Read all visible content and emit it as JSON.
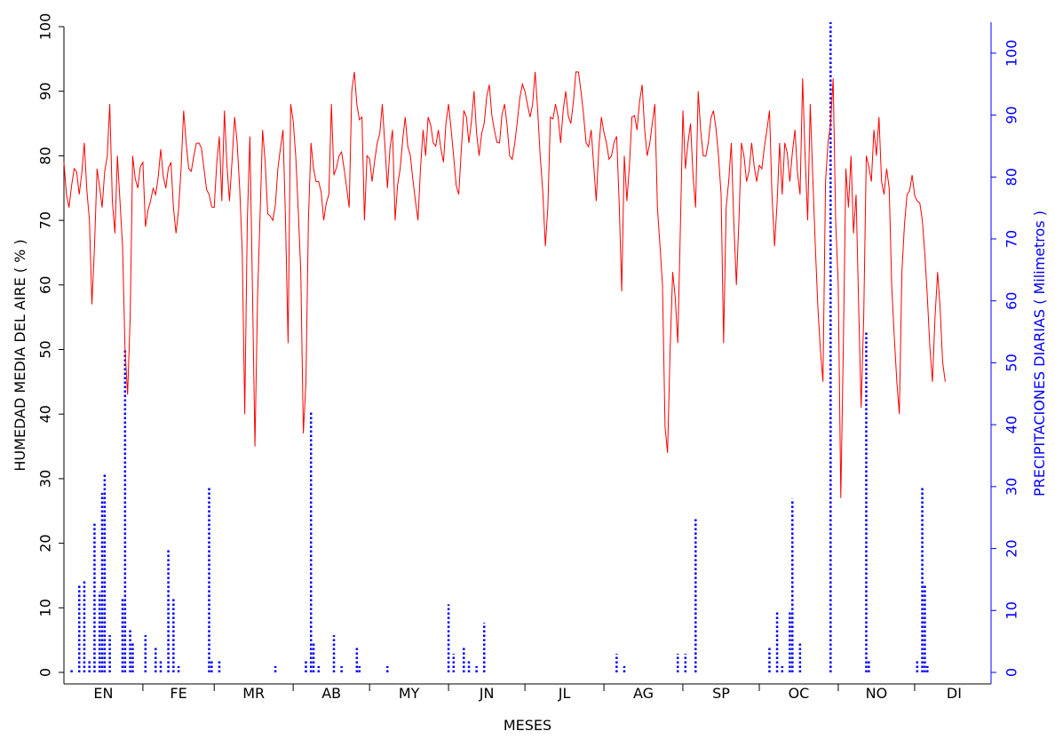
{
  "chart_data": {
    "type": "line",
    "xlabel": "MESES",
    "ylabel_left": "HUMEDAD MEDIA DEL AIRE  ( % )",
    "ylabel_right": "PRECIPITACIONES DIARIAS  ( Milimetros )",
    "categories": [
      "EN",
      "FE",
      "MR",
      "AB",
      "MY",
      "JN",
      "JL",
      "AG",
      "SP",
      "OC",
      "NO",
      "DI"
    ],
    "x_unit": "day of year",
    "xlim": [
      1,
      365
    ],
    "ylim_left": [
      0,
      100
    ],
    "ylim_right": [
      0,
      105
    ],
    "left_ticks": [
      0,
      10,
      20,
      30,
      40,
      50,
      60,
      70,
      80,
      90,
      100
    ],
    "right_ticks": [
      0,
      10,
      20,
      30,
      40,
      50,
      60,
      70,
      80,
      90,
      100
    ],
    "colors": {
      "humidity": "#ff0000",
      "precipitation": "#0000ff",
      "left_axis": "#000000",
      "right_axis": "#0000ff"
    },
    "series": [
      {
        "axis": "left",
        "style": "solid",
        "color": "#ff0000",
        "anchor_values": [
          [
            1,
            79
          ],
          [
            3,
            72
          ],
          [
            5,
            78
          ],
          [
            7,
            74
          ],
          [
            9,
            82
          ],
          [
            11,
            70
          ],
          [
            12,
            57
          ],
          [
            14,
            78
          ],
          [
            16,
            72
          ],
          [
            18,
            80
          ],
          [
            19,
            88
          ],
          [
            20,
            73
          ],
          [
            21,
            68
          ],
          [
            22,
            80
          ],
          [
            23,
            73
          ],
          [
            24,
            66
          ],
          [
            25,
            50
          ],
          [
            26,
            43
          ],
          [
            27,
            55
          ],
          [
            28,
            80
          ],
          [
            30,
            75
          ],
          [
            32,
            79
          ],
          [
            33,
            69
          ],
          [
            35,
            73
          ],
          [
            37,
            74
          ],
          [
            39,
            81
          ],
          [
            41,
            75
          ],
          [
            43,
            79
          ],
          [
            44,
            72
          ],
          [
            45,
            68
          ],
          [
            47,
            78
          ],
          [
            48,
            87
          ],
          [
            50,
            78
          ],
          [
            52,
            80
          ],
          [
            54,
            82
          ],
          [
            56,
            78
          ],
          [
            58,
            74
          ],
          [
            60,
            72
          ],
          [
            62,
            83
          ],
          [
            63,
            73
          ],
          [
            64,
            87
          ],
          [
            66,
            73
          ],
          [
            68,
            86
          ],
          [
            70,
            75
          ],
          [
            71,
            65
          ],
          [
            72,
            40
          ],
          [
            73,
            70
          ],
          [
            74,
            83
          ],
          [
            75,
            60
          ],
          [
            76,
            35
          ],
          [
            77,
            58
          ],
          [
            79,
            84
          ],
          [
            81,
            71
          ],
          [
            83,
            70
          ],
          [
            85,
            78
          ],
          [
            87,
            84
          ],
          [
            88,
            70
          ],
          [
            89,
            51
          ],
          [
            90,
            88
          ],
          [
            92,
            80
          ],
          [
            94,
            62
          ],
          [
            95,
            37
          ],
          [
            96,
            45
          ],
          [
            97,
            70
          ],
          [
            98,
            82
          ],
          [
            99,
            78
          ],
          [
            101,
            76
          ],
          [
            103,
            70
          ],
          [
            105,
            74
          ],
          [
            106,
            88
          ],
          [
            107,
            77
          ],
          [
            109,
            80
          ],
          [
            111,
            78
          ],
          [
            113,
            72
          ],
          [
            114,
            90
          ],
          [
            115,
            93
          ],
          [
            116,
            88
          ],
          [
            118,
            86
          ],
          [
            119,
            70
          ],
          [
            120,
            80
          ],
          [
            122,
            76
          ],
          [
            124,
            82
          ],
          [
            126,
            88
          ],
          [
            128,
            75
          ],
          [
            130,
            84
          ],
          [
            131,
            70
          ],
          [
            133,
            78
          ],
          [
            135,
            86
          ],
          [
            137,
            80
          ],
          [
            139,
            73
          ],
          [
            140,
            70
          ],
          [
            141,
            78
          ],
          [
            142,
            84
          ],
          [
            143,
            80
          ],
          [
            144,
            86
          ],
          [
            146,
            82
          ],
          [
            148,
            84
          ],
          [
            150,
            79
          ],
          [
            152,
            88
          ],
          [
            154,
            80
          ],
          [
            156,
            74
          ],
          [
            158,
            87
          ],
          [
            160,
            82
          ],
          [
            162,
            90
          ],
          [
            164,
            80
          ],
          [
            166,
            85
          ],
          [
            168,
            91
          ],
          [
            170,
            84
          ],
          [
            172,
            82
          ],
          [
            174,
            88
          ],
          [
            176,
            80
          ],
          [
            178,
            82
          ],
          [
            180,
            89
          ],
          [
            182,
            90
          ],
          [
            184,
            86
          ],
          [
            186,
            93
          ],
          [
            188,
            80
          ],
          [
            190,
            66
          ],
          [
            191,
            72
          ],
          [
            192,
            86
          ],
          [
            194,
            88
          ],
          [
            196,
            82
          ],
          [
            198,
            90
          ],
          [
            200,
            85
          ],
          [
            202,
            93
          ],
          [
            204,
            90
          ],
          [
            206,
            82
          ],
          [
            208,
            84
          ],
          [
            210,
            73
          ],
          [
            212,
            86
          ],
          [
            214,
            82
          ],
          [
            216,
            80
          ],
          [
            218,
            83
          ],
          [
            220,
            59
          ],
          [
            221,
            80
          ],
          [
            222,
            73
          ],
          [
            224,
            86
          ],
          [
            226,
            84
          ],
          [
            228,
            91
          ],
          [
            230,
            80
          ],
          [
            232,
            85
          ],
          [
            233,
            88
          ],
          [
            234,
            72
          ],
          [
            236,
            60
          ],
          [
            237,
            38
          ],
          [
            238,
            34
          ],
          [
            239,
            50
          ],
          [
            240,
            62
          ],
          [
            241,
            58
          ],
          [
            242,
            51
          ],
          [
            244,
            87
          ],
          [
            245,
            78
          ],
          [
            247,
            85
          ],
          [
            249,
            72
          ],
          [
            250,
            90
          ],
          [
            252,
            80
          ],
          [
            254,
            82
          ],
          [
            256,
            87
          ],
          [
            258,
            80
          ],
          [
            259,
            74
          ],
          [
            260,
            51
          ],
          [
            261,
            72
          ],
          [
            263,
            82
          ],
          [
            265,
            60
          ],
          [
            266,
            70
          ],
          [
            267,
            82
          ],
          [
            269,
            76
          ],
          [
            271,
            82
          ],
          [
            273,
            76
          ],
          [
            275,
            78
          ],
          [
            277,
            84
          ],
          [
            278,
            87
          ],
          [
            279,
            74
          ],
          [
            280,
            66
          ],
          [
            282,
            82
          ],
          [
            283,
            74
          ],
          [
            284,
            82
          ],
          [
            286,
            76
          ],
          [
            288,
            84
          ],
          [
            290,
            74
          ],
          [
            291,
            92
          ],
          [
            292,
            80
          ],
          [
            293,
            70
          ],
          [
            294,
            88
          ],
          [
            296,
            66
          ],
          [
            298,
            50
          ],
          [
            299,
            45
          ],
          [
            300,
            76
          ],
          [
            302,
            85
          ],
          [
            303,
            92
          ],
          [
            304,
            70
          ],
          [
            305,
            60
          ],
          [
            306,
            27
          ],
          [
            307,
            50
          ],
          [
            308,
            78
          ],
          [
            309,
            72
          ],
          [
            310,
            80
          ],
          [
            311,
            68
          ],
          [
            312,
            74
          ],
          [
            314,
            41
          ],
          [
            315,
            55
          ],
          [
            316,
            80
          ],
          [
            318,
            76
          ],
          [
            319,
            84
          ],
          [
            320,
            80
          ],
          [
            321,
            86
          ],
          [
            322,
            76
          ],
          [
            323,
            74
          ],
          [
            324,
            78
          ],
          [
            325,
            75
          ],
          [
            326,
            60
          ],
          [
            327,
            52
          ],
          [
            328,
            45
          ],
          [
            329,
            40
          ],
          [
            330,
            62
          ],
          [
            332,
            74
          ],
          [
            334,
            77
          ],
          [
            336,
            73
          ],
          [
            338,
            70
          ],
          [
            340,
            58
          ],
          [
            342,
            45
          ],
          [
            343,
            55
          ],
          [
            344,
            62
          ],
          [
            346,
            48
          ],
          [
            347,
            45
          ]
        ]
      },
      {
        "axis": "right",
        "style": "dotted",
        "color": "#0000ff",
        "values": [
          [
            4,
            0.5
          ],
          [
            7,
            14
          ],
          [
            9,
            15
          ],
          [
            11,
            2
          ],
          [
            13,
            24
          ],
          [
            15,
            13
          ],
          [
            16,
            29
          ],
          [
            17,
            32
          ],
          [
            19,
            6
          ],
          [
            24,
            12
          ],
          [
            25,
            52
          ],
          [
            27,
            7
          ],
          [
            28,
            5
          ],
          [
            33,
            6
          ],
          [
            37,
            4
          ],
          [
            39,
            2
          ],
          [
            42,
            20
          ],
          [
            44,
            12
          ],
          [
            46,
            1
          ],
          [
            58,
            30
          ],
          [
            59,
            2
          ],
          [
            62,
            2
          ],
          [
            84,
            1
          ],
          [
            96,
            2
          ],
          [
            98,
            42
          ],
          [
            99,
            5
          ],
          [
            101,
            1
          ],
          [
            107,
            6
          ],
          [
            110,
            1
          ],
          [
            116,
            4
          ],
          [
            117,
            1
          ],
          [
            128,
            1
          ],
          [
            152,
            11
          ],
          [
            154,
            3
          ],
          [
            158,
            4
          ],
          [
            160,
            2
          ],
          [
            163,
            1
          ],
          [
            166,
            8
          ],
          [
            218,
            3
          ],
          [
            221,
            1
          ],
          [
            242,
            3
          ],
          [
            245,
            3
          ],
          [
            249,
            25
          ],
          [
            278,
            4
          ],
          [
            281,
            10
          ],
          [
            283,
            1
          ],
          [
            286,
            10
          ],
          [
            287,
            28
          ],
          [
            290,
            5
          ],
          [
            302,
            105
          ],
          [
            316,
            55
          ],
          [
            317,
            2
          ],
          [
            336,
            2
          ],
          [
            338,
            30
          ],
          [
            339,
            14
          ],
          [
            340,
            1
          ]
        ]
      }
    ]
  }
}
